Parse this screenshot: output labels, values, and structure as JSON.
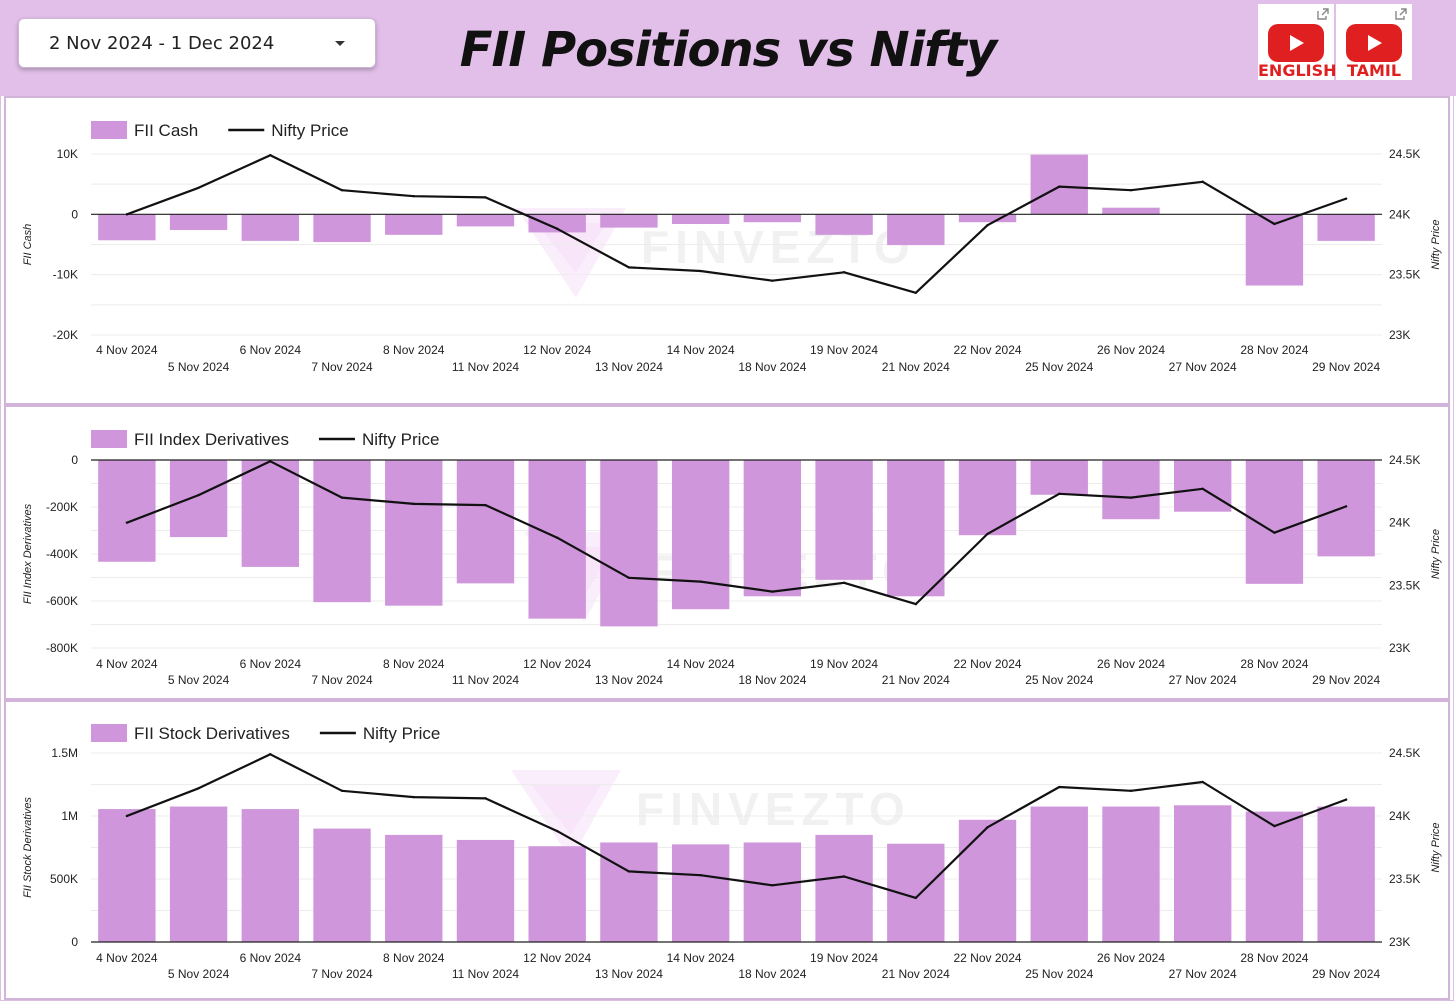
{
  "header": {
    "date_range": "2 Nov 2024 - 1 Dec 2024",
    "title": "FII Positions vs Nifty",
    "youtube_english": "ENGLISH",
    "youtube_tamil": "TAMIL"
  },
  "watermark": "FINVEZTO",
  "colors": {
    "bar": "#cf96db",
    "line": "#111111",
    "header_bg": "#e1bfe8"
  },
  "chart_data": [
    {
      "type": "bar",
      "legend": {
        "bar_label": "FII Cash",
        "line_label": "Nifty Price"
      },
      "ylabel_left": "FII Cash",
      "ylabel_right": "Nifty Price",
      "left_ticks": [
        "10K",
        "0",
        "-10K",
        "-20K"
      ],
      "left_tick_values": [
        10000,
        0,
        -10000,
        -20000
      ],
      "ylim_left": [
        -20000,
        10000
      ],
      "right_ticks": [
        "24.5K",
        "24K",
        "23.5K",
        "23K"
      ],
      "right_tick_values": [
        24500,
        24000,
        23500,
        23000
      ],
      "ylim_right": [
        23000,
        24500
      ],
      "categories": [
        "4 Nov 2024",
        "5 Nov 2024",
        "6 Nov 2024",
        "7 Nov 2024",
        "8 Nov 2024",
        "11 Nov 2024",
        "12 Nov 2024",
        "13 Nov 2024",
        "14 Nov 2024",
        "18 Nov 2024",
        "19 Nov 2024",
        "21 Nov 2024",
        "22 Nov 2024",
        "25 Nov 2024",
        "26 Nov 2024",
        "27 Nov 2024",
        "28 Nov 2024",
        "29 Nov 2024"
      ],
      "series": [
        {
          "name": "FII Cash",
          "type": "bar",
          "values": [
            -4300,
            -2600,
            -4400,
            -4600,
            -3400,
            -2000,
            -3000,
            -2200,
            -1600,
            -1300,
            -3400,
            -5100,
            -1300,
            9900,
            1100,
            0,
            -11800,
            -4400
          ]
        },
        {
          "name": "Nifty Price",
          "type": "line",
          "values": [
            24000,
            24220,
            24490,
            24200,
            24150,
            24140,
            23880,
            23560,
            23530,
            23450,
            23520,
            23350,
            23910,
            24230,
            24200,
            24270,
            23920,
            24130
          ]
        }
      ]
    },
    {
      "type": "bar",
      "legend": {
        "bar_label": "FII Index Derivatives",
        "line_label": "Nifty Price"
      },
      "ylabel_left": "FII Index Derivatives",
      "ylabel_right": "Nifty Price",
      "left_ticks": [
        "0",
        "-200K",
        "-400K",
        "-600K",
        "-800K"
      ],
      "left_tick_values": [
        0,
        -200000,
        -400000,
        -600000,
        -800000
      ],
      "ylim_left": [
        -800000,
        0
      ],
      "right_ticks": [
        "24.5K",
        "24K",
        "23.5K",
        "23K"
      ],
      "right_tick_values": [
        24500,
        24000,
        23500,
        23000
      ],
      "ylim_right": [
        23000,
        24500
      ],
      "categories": [
        "4 Nov 2024",
        "5 Nov 2024",
        "6 Nov 2024",
        "7 Nov 2024",
        "8 Nov 2024",
        "11 Nov 2024",
        "12 Nov 2024",
        "13 Nov 2024",
        "14 Nov 2024",
        "18 Nov 2024",
        "19 Nov 2024",
        "21 Nov 2024",
        "22 Nov 2024",
        "25 Nov 2024",
        "26 Nov 2024",
        "27 Nov 2024",
        "28 Nov 2024",
        "29 Nov 2024"
      ],
      "series": [
        {
          "name": "FII Index Derivatives",
          "type": "bar",
          "values": [
            -433000,
            -328000,
            -455000,
            -605000,
            -620000,
            -525000,
            -675000,
            -708000,
            -635000,
            -580000,
            -510000,
            -580000,
            -320000,
            -148000,
            -252000,
            -220000,
            -527000,
            -410000
          ]
        },
        {
          "name": "Nifty Price",
          "type": "line",
          "values": [
            24000,
            24220,
            24490,
            24200,
            24150,
            24140,
            23880,
            23560,
            23530,
            23450,
            23520,
            23350,
            23910,
            24230,
            24200,
            24270,
            23920,
            24130
          ]
        }
      ]
    },
    {
      "type": "bar",
      "legend": {
        "bar_label": "FII Stock Derivatives",
        "line_label": "Nifty Price"
      },
      "ylabel_left": "FII Stock Derivatives",
      "ylabel_right": "Nifty Price",
      "left_ticks": [
        "1.5M",
        "1M",
        "500K",
        "0"
      ],
      "left_tick_values": [
        1500000,
        1000000,
        500000,
        0
      ],
      "ylim_left": [
        0,
        1500000
      ],
      "right_ticks": [
        "24.5K",
        "24K",
        "23.5K",
        "23K"
      ],
      "right_tick_values": [
        24500,
        24000,
        23500,
        23000
      ],
      "ylim_right": [
        23000,
        24500
      ],
      "categories": [
        "4 Nov 2024",
        "5 Nov 2024",
        "6 Nov 2024",
        "7 Nov 2024",
        "8 Nov 2024",
        "11 Nov 2024",
        "12 Nov 2024",
        "13 Nov 2024",
        "14 Nov 2024",
        "18 Nov 2024",
        "19 Nov 2024",
        "21 Nov 2024",
        "22 Nov 2024",
        "25 Nov 2024",
        "26 Nov 2024",
        "27 Nov 2024",
        "28 Nov 2024",
        "29 Nov 2024"
      ],
      "series": [
        {
          "name": "FII Stock Derivatives",
          "type": "bar",
          "values": [
            1055000,
            1075000,
            1055000,
            900000,
            850000,
            810000,
            760000,
            790000,
            775000,
            790000,
            850000,
            780000,
            970000,
            1075000,
            1075000,
            1085000,
            1035000,
            1075000
          ]
        },
        {
          "name": "Nifty Price",
          "type": "line",
          "values": [
            24000,
            24220,
            24490,
            24200,
            24150,
            24140,
            23880,
            23560,
            23530,
            23450,
            23520,
            23350,
            23910,
            24230,
            24200,
            24270,
            23920,
            24130
          ]
        }
      ]
    }
  ]
}
